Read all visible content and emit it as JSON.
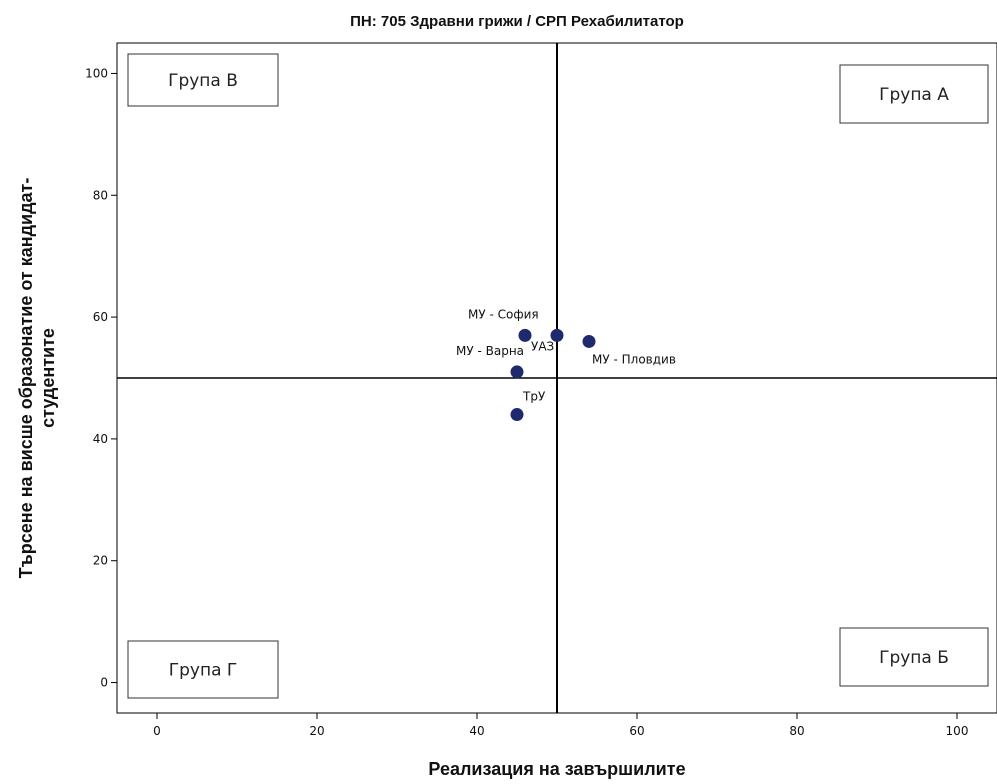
{
  "chart_data": {
    "type": "scatter",
    "title": "ПН: 705 Здравни грижи / СРП Рехабилитатор",
    "xlabel": "Реализация на завършилите",
    "ylabel": [
      "Търсене на висше образонатие от кандидат-",
      "студентите"
    ],
    "xlim": [
      -5,
      105
    ],
    "ylim": [
      -5,
      105
    ],
    "x_ticks": [
      0,
      20,
      40,
      60,
      80,
      100
    ],
    "y_ticks": [
      0,
      20,
      40,
      60,
      80,
      100
    ],
    "grid": false,
    "reference_lines": {
      "x": 50,
      "y": 50
    },
    "point_color": "#1f2a6e",
    "points": [
      {
        "label": "МУ - София",
        "x": 46,
        "y": 57
      },
      {
        "label": "УАЗ",
        "x": 50,
        "y": 57
      },
      {
        "label": "МУ - Пловдив",
        "x": 54,
        "y": 56
      },
      {
        "label": "МУ - Варна",
        "x": 45,
        "y": 51
      },
      {
        "label": "ТрУ",
        "x": 45,
        "y": 44
      }
    ],
    "quadrant_labels": [
      {
        "text": "Група В",
        "position": "top-left"
      },
      {
        "text": "Група А",
        "position": "top-right"
      },
      {
        "text": "Група Г",
        "position": "bottom-left"
      },
      {
        "text": "Група Б",
        "position": "bottom-right"
      }
    ]
  }
}
